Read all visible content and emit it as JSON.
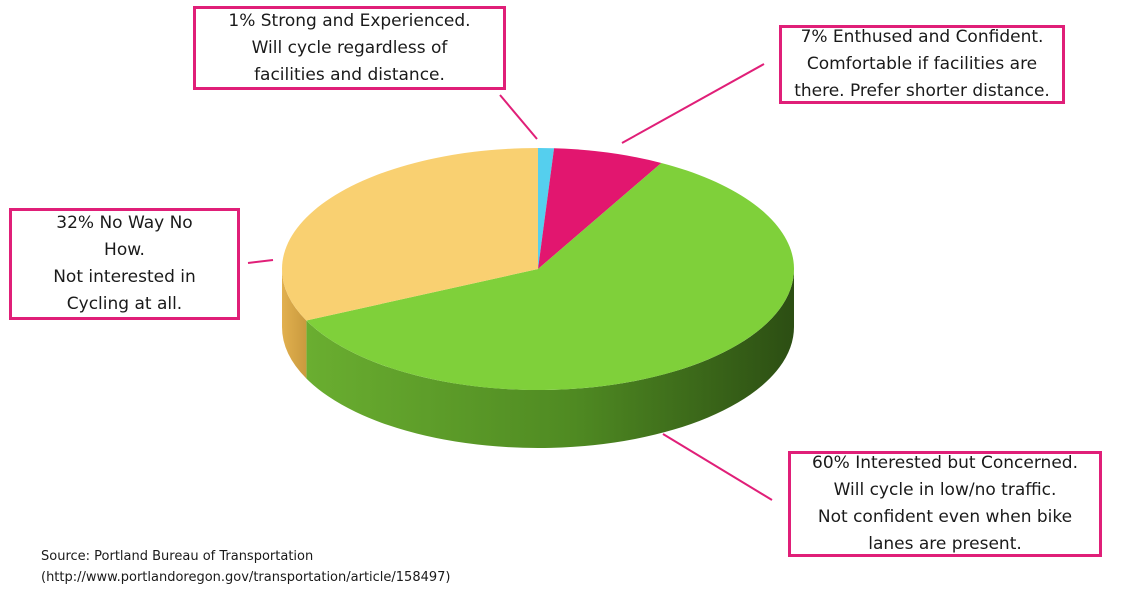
{
  "chart_data": {
    "type": "pie",
    "style": "3d",
    "slices": [
      {
        "label": "Strong and Experienced",
        "value": 1,
        "color": "#55cfee",
        "callout": [
          "1% Strong and Experienced.",
          "Will cycle regardless of",
          "facilities and distance."
        ]
      },
      {
        "label": "Enthused and Confident",
        "value": 7,
        "color": "#e2166f",
        "callout": [
          "7% Enthused and Confident.",
          "Comfortable if facilities are",
          "there. Prefer shorter distance."
        ]
      },
      {
        "label": "Interested but Concerned",
        "value": 60,
        "color": "#7fd03a",
        "callout": [
          "60% Interested but Concerned.",
          "Will cycle in low/no traffic.",
          "Not confident even when bike",
          "lanes are present."
        ]
      },
      {
        "label": "No Way No How",
        "value": 32,
        "color": "#f9d071",
        "callout": [
          "32% No Way No",
          "How.",
          "Not interested in",
          "Cycling at all."
        ]
      }
    ]
  },
  "source": {
    "line1": "Source: Portland Bureau of Transportation",
    "line2": "(http://www.portlandoregon.gov/transportation/article/158497)"
  },
  "colors": {
    "callout_border": "#e01f78",
    "leader_line": "#e01f78"
  }
}
